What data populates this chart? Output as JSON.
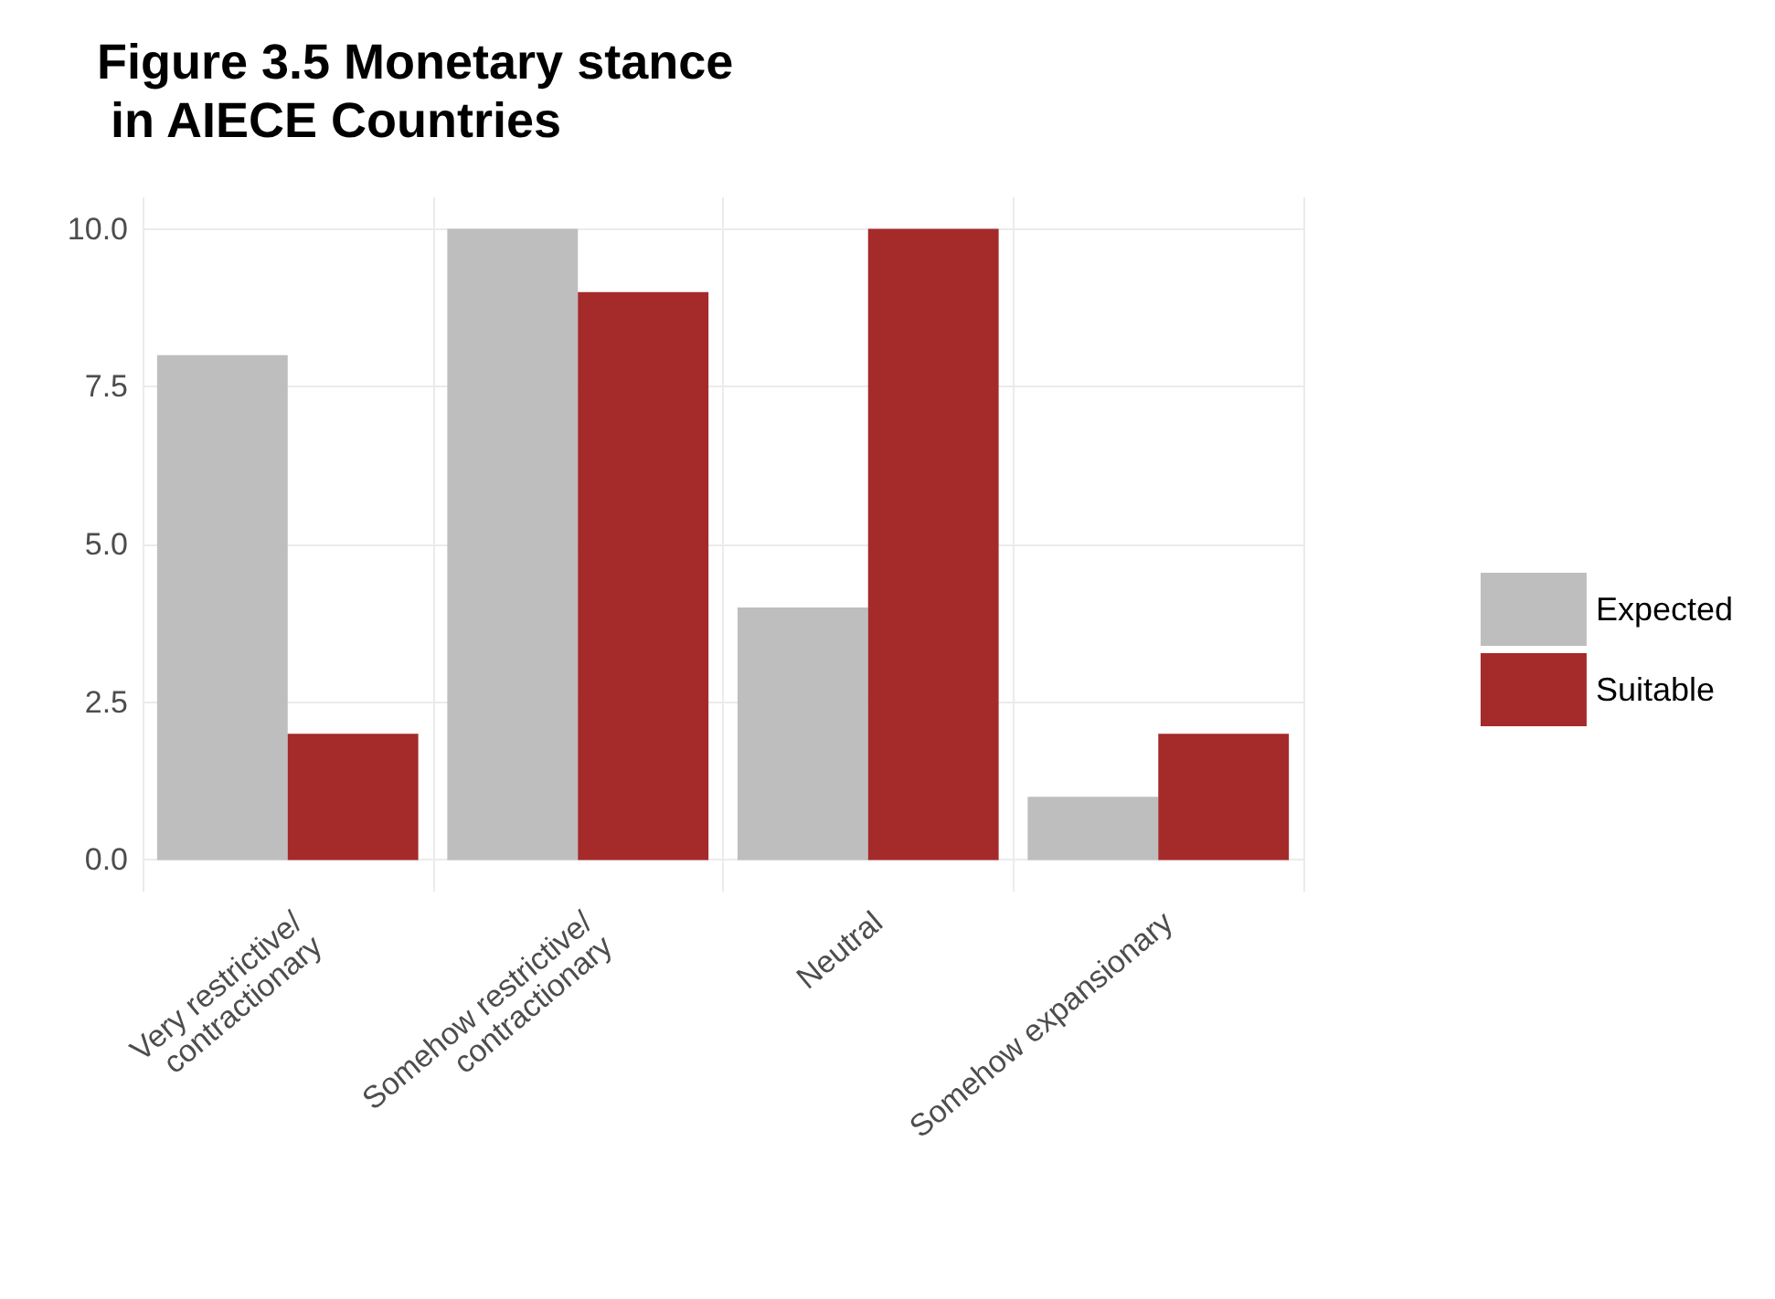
{
  "chart_data": {
    "type": "bar",
    "title": "Figure 3.5 Monetary stance\n in AIECE Countries",
    "categories": [
      "Very restrictive/\ncontractionary",
      "Somehow restrictive/\ncontractionary",
      "Neutral",
      "Somehow expansionary"
    ],
    "series": [
      {
        "name": "Expected",
        "color": "#bebebe",
        "values": [
          8,
          10,
          4,
          1
        ]
      },
      {
        "name": "Suitable",
        "color": "#a52a2a",
        "values": [
          2,
          9,
          10,
          2
        ]
      }
    ],
    "ylim": [
      -0.5,
      10.5
    ],
    "yticks": [
      {
        "value": 0,
        "label": "0.0"
      },
      {
        "value": 2.5,
        "label": "2.5"
      },
      {
        "value": 5,
        "label": "5.0"
      },
      {
        "value": 7.5,
        "label": "7.5"
      },
      {
        "value": 10,
        "label": "10.0"
      }
    ],
    "grid": true,
    "legend": "right"
  }
}
